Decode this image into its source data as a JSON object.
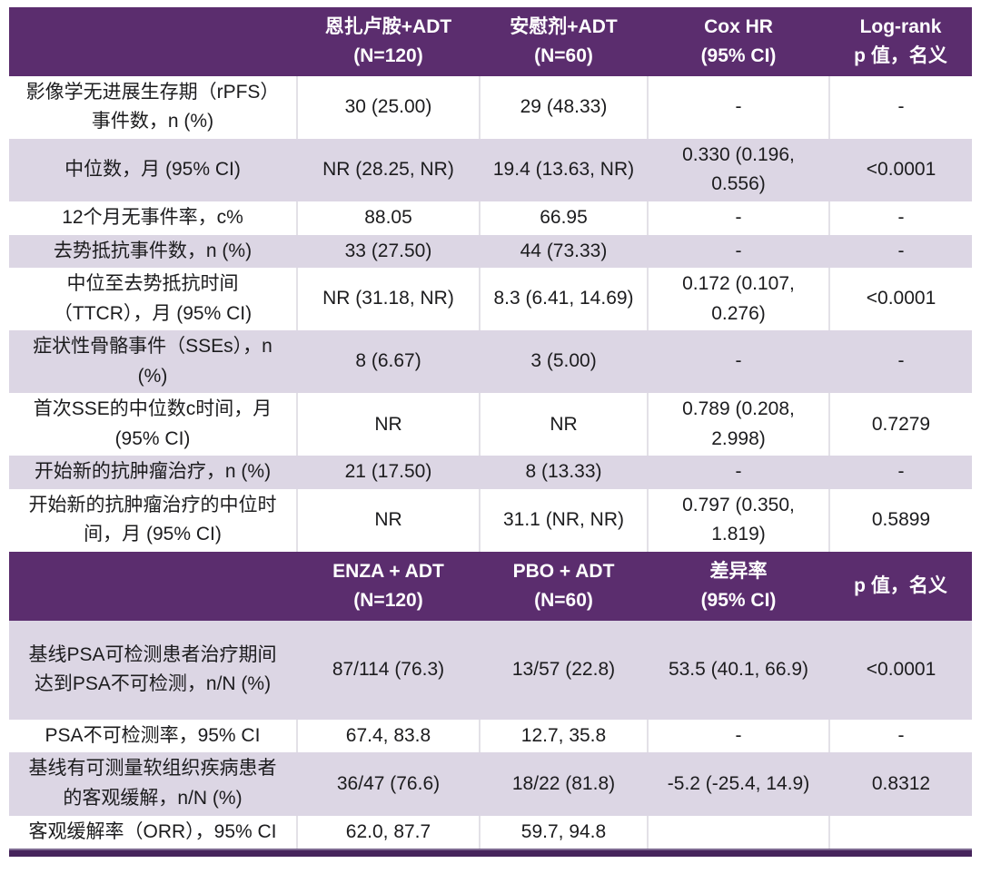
{
  "colors": {
    "header_bg": "#5b2d6e",
    "header_text": "#ffffff",
    "row_bg": "#ffffff",
    "row_alt_bg": "#dcd6e4",
    "divider": "#e3e1e7",
    "bottom_bar": "#46245c",
    "body_text": "#1c1c1e"
  },
  "chart_data": [
    {
      "type": "table",
      "columns": [
        "",
        "恩扎卢胺+ADT\n(N=120)",
        "安慰剂+ADT\n(N=60)",
        "Cox HR\n(95% CI)",
        "Log-rank\np 值，名义"
      ],
      "rows": [
        [
          "影像学无进展生存期（rPFS）\n事件数，n (%)",
          "30 (25.00)",
          "29 (48.33)",
          "-",
          "-"
        ],
        [
          "中位数，月 (95% CI)",
          "NR (28.25, NR)",
          "19.4 (13.63, NR)",
          "0.330 (0.196,\n0.556)",
          "<0.0001"
        ],
        [
          "12个月无事件率，c%",
          "88.05",
          "66.95",
          "-",
          "-"
        ],
        [
          "去势抵抗事件数，n (%)",
          "33 (27.50)",
          "44 (73.33)",
          "-",
          "-"
        ],
        [
          "中位至去势抵抗时间\n（TTCR），月 (95% CI)",
          "NR (31.18, NR)",
          "8.3 (6.41, 14.69)",
          "0.172 (0.107,\n0.276)",
          "<0.0001"
        ],
        [
          "症状性骨骼事件（SSEs），n\n(%)",
          "8 (6.67)",
          "3 (5.00)",
          "-",
          "-"
        ],
        [
          "首次SSE的中位数c时间，月\n(95% CI)",
          "NR",
          "NR",
          "0.789 (0.208,\n2.998)",
          "0.7279"
        ],
        [
          "开始新的抗肿瘤治疗，n (%)",
          "21 (17.50)",
          "8 (13.33)",
          "-",
          "-"
        ],
        [
          "开始新的抗肿瘤治疗的中位时\n间，月 (95% CI)",
          "NR",
          "31.1 (NR, NR)",
          "0.797 (0.350,\n1.819)",
          "0.5899"
        ]
      ]
    },
    {
      "type": "table",
      "columns": [
        "",
        "ENZA + ADT\n(N=120)",
        "PBO + ADT\n(N=60)",
        "差异率\n(95% CI)",
        "p 值，名义"
      ],
      "rows": [
        [
          "基线PSA可检测患者治疗期间\n达到PSA不可检测，n/N (%)",
          "87/114 (76.3)",
          "13/57 (22.8)",
          "53.5 (40.1, 66.9)",
          "<0.0001"
        ],
        [
          "PSA不可检测率，95% CI",
          "67.4, 83.8",
          "12.7, 35.8",
          "-",
          "-"
        ],
        [
          "基线有可测量软组织疾病患者\n的客观缓解，n/N (%)",
          "36/47 (76.6)",
          "18/22 (81.8)",
          "-5.2 (-25.4, 14.9)",
          "0.8312"
        ],
        [
          "客观缓解率（ORR），95% CI",
          "62.0, 87.7",
          "59.7, 94.8",
          "",
          ""
        ]
      ]
    }
  ]
}
